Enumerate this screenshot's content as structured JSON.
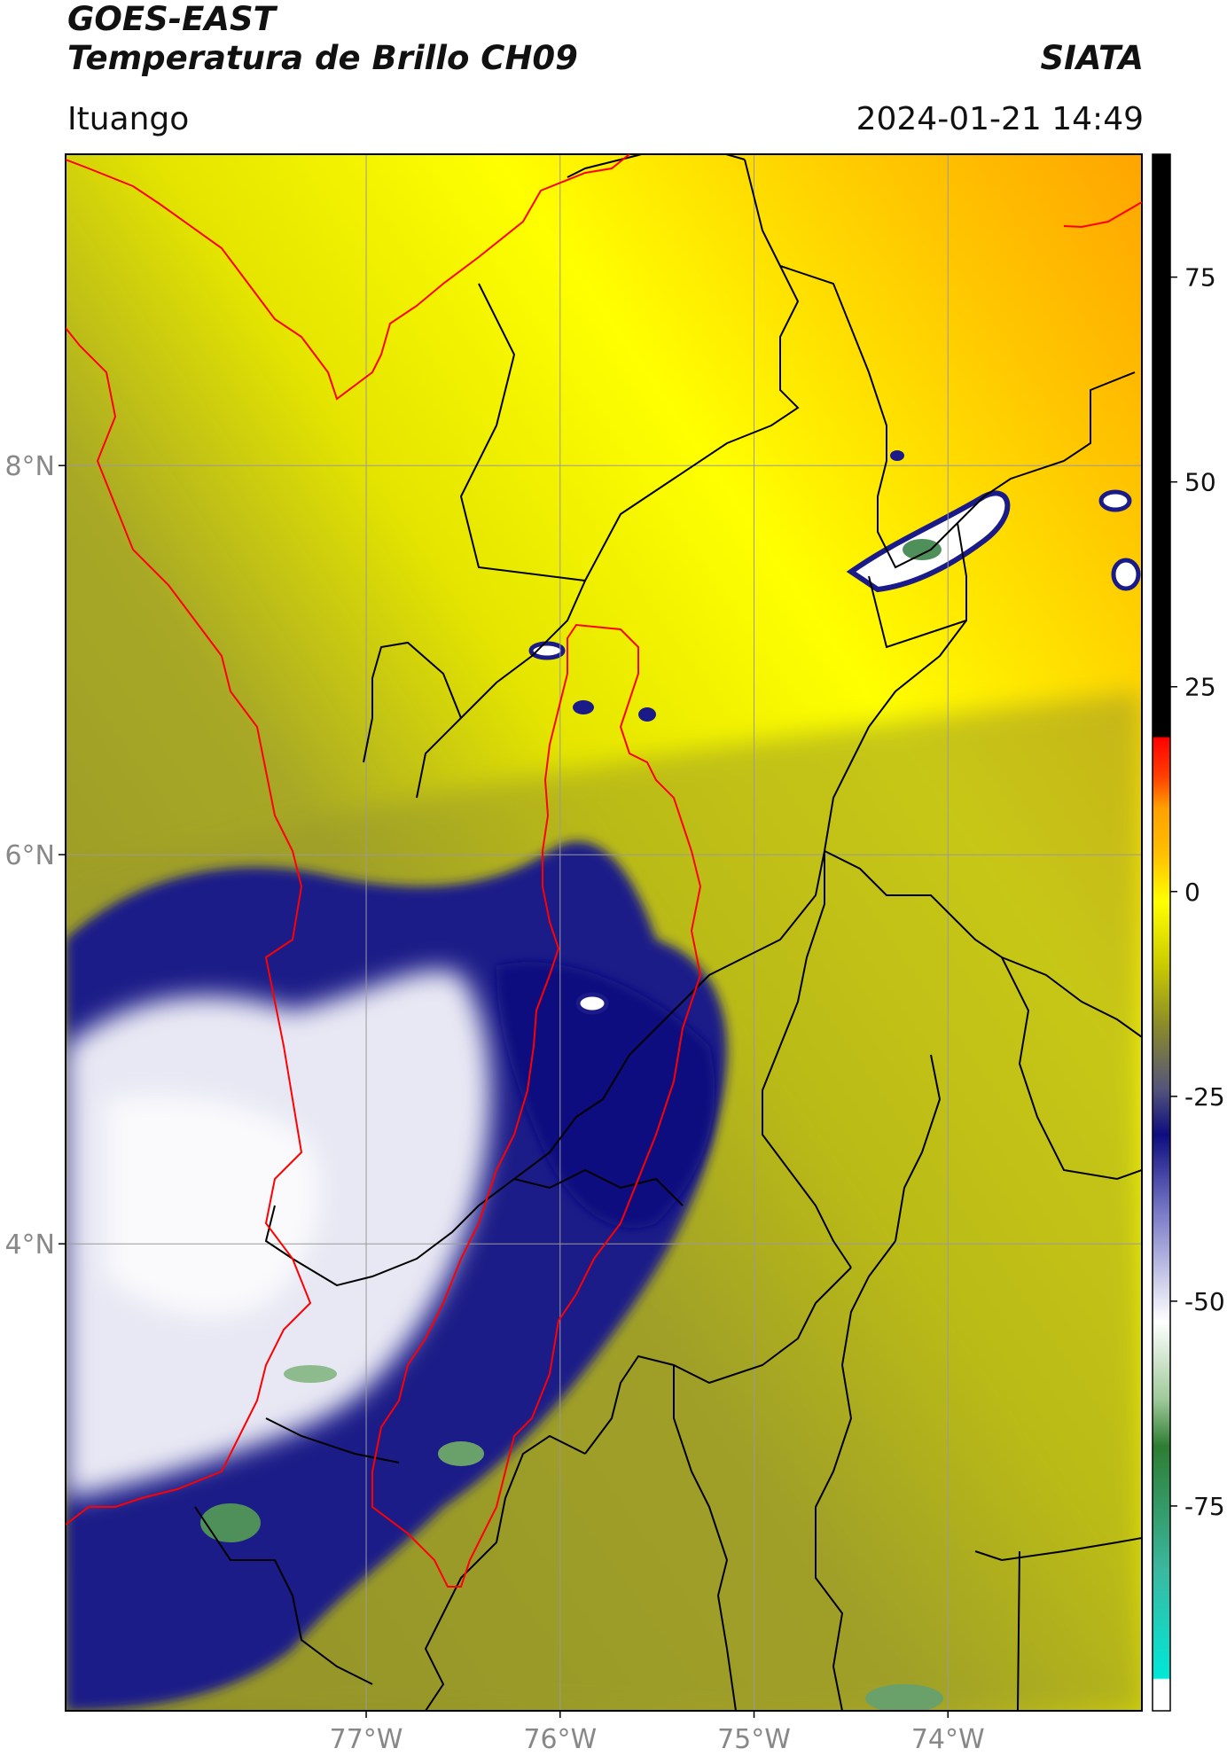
{
  "header": {
    "satellite": "GOES-EAST",
    "product": "Temperatura de Brillo CH09",
    "brand": "SIATA",
    "region": "Ituango",
    "datetime": "2024-01-21 14:49"
  },
  "map": {
    "lat_labels": [
      "8°N",
      "6°N",
      "4°N"
    ],
    "lon_labels": [
      "77°W",
      "76°W",
      "75°W",
      "74°W"
    ],
    "lon_range": [
      -78.55,
      -73.0
    ],
    "lat_range": [
      1.6,
      9.6
    ],
    "grid": true
  },
  "colorbar": {
    "ticks": [
      "75",
      "50",
      "25",
      "0",
      "-25",
      "-50",
      "-75"
    ],
    "tick_values": [
      75,
      50,
      25,
      0,
      -25,
      -50,
      -75
    ],
    "range": [
      -100,
      90
    ],
    "colors": {
      "black": "#000000",
      "red": "#ff1a00",
      "orange": "#ffa500",
      "yellow": "#ffff00",
      "olive": "#8a8a2a",
      "navy": "#0d0d80",
      "white": "#ffffff",
      "green": "#2e7d32",
      "cyan": "#00e0d0"
    }
  }
}
